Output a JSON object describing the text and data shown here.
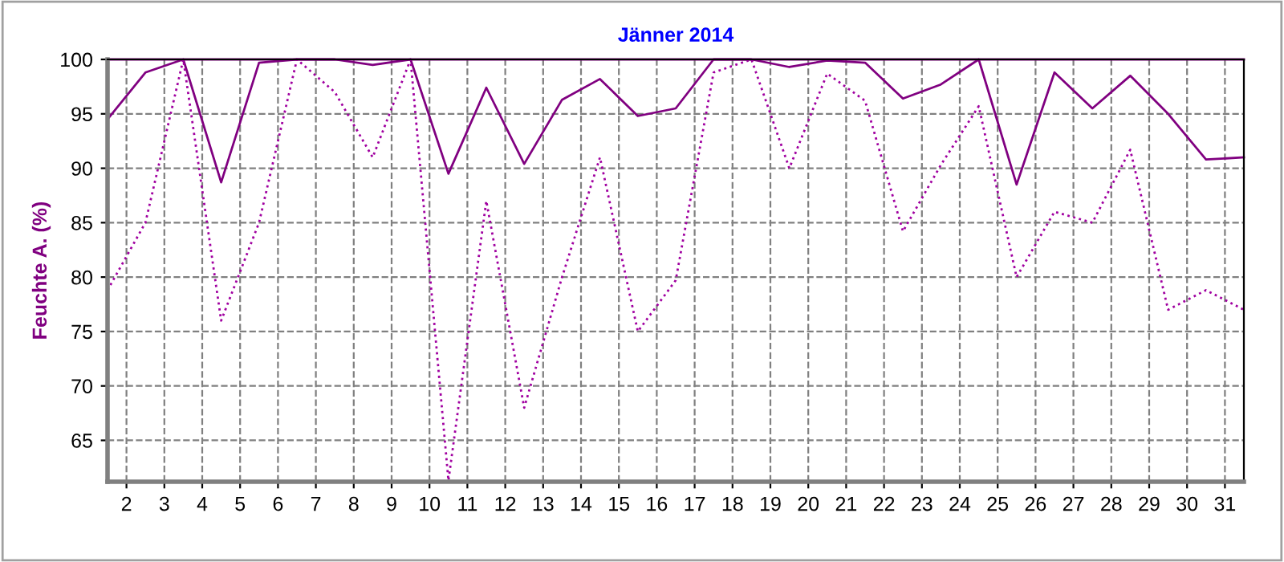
{
  "chart_data": {
    "type": "line",
    "title": "Jänner 2014",
    "ylabel": "Feuchte A. (%)",
    "x": [
      1.5,
      2.5,
      3.5,
      4.5,
      5.5,
      6.5,
      7.5,
      8.5,
      9.5,
      10.5,
      11.5,
      12.5,
      13.5,
      14.5,
      15.5,
      16.5,
      17.5,
      18.5,
      19.5,
      20.5,
      21.5,
      22.5,
      23.5,
      24.5,
      25.5,
      26.5,
      27.5,
      28.5,
      29.5,
      30.5,
      31.5
    ],
    "series": [
      {
        "color": "#800080",
        "line_style": "solid",
        "values": [
          100,
          100,
          100,
          100,
          100,
          100,
          100,
          100,
          100,
          100,
          100,
          100,
          100,
          100,
          100,
          100,
          100,
          100,
          100,
          100,
          100,
          100,
          100,
          100,
          100,
          100,
          100,
          100,
          100,
          100,
          100
        ]
      },
      {
        "color": "#800080",
        "line_style": "solid",
        "values": [
          94.5,
          98.8,
          100,
          88.7,
          99.7,
          100,
          100,
          99.5,
          100,
          89.5,
          97.4,
          90.4,
          96.3,
          98.2,
          94.8,
          95.5,
          100,
          100,
          99.3,
          99.9,
          99.7,
          96.4,
          97.7,
          100,
          88.5,
          98.8,
          95.5,
          98.5,
          95,
          90.8,
          91
        ]
      },
      {
        "color": "#a000a0",
        "line_style": "dotted",
        "values": [
          78.8,
          85,
          100,
          76,
          85,
          100,
          97,
          91,
          100,
          61.3,
          87,
          68,
          80,
          91,
          75,
          79.7,
          98.8,
          100,
          90,
          98.7,
          96.2,
          84.2,
          90.3,
          95.7,
          80,
          86,
          85,
          91.7,
          77,
          78.8,
          77
        ]
      }
    ],
    "xlim": [
      1.5,
      31.5
    ],
    "xticks": [
      2,
      3,
      4,
      5,
      6,
      7,
      8,
      9,
      10,
      11,
      12,
      13,
      14,
      15,
      16,
      17,
      18,
      19,
      20,
      21,
      22,
      23,
      24,
      25,
      26,
      27,
      28,
      29,
      30,
      31
    ],
    "ylim": [
      61.2,
      100
    ],
    "yticks": [
      65,
      70,
      75,
      80,
      85,
      90,
      95,
      100
    ],
    "grid": true,
    "legend": false,
    "marker": "none"
  }
}
